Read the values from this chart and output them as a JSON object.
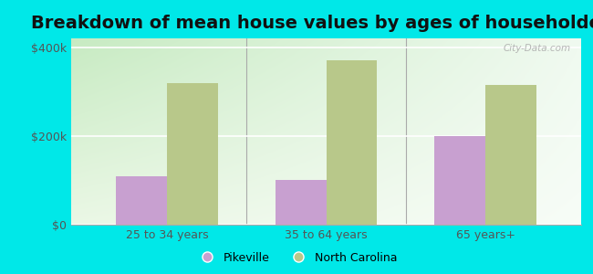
{
  "title": "Breakdown of mean house values by ages of householders",
  "categories": [
    "25 to 34 years",
    "35 to 64 years",
    "65 years+"
  ],
  "pikeville_values": [
    110000,
    100000,
    200000
  ],
  "nc_values": [
    320000,
    370000,
    315000
  ],
  "pikeville_color": "#c8a0d0",
  "nc_color": "#b8c88a",
  "background_color": "#00e8e8",
  "plot_bg_top_left": "#c8e8c0",
  "plot_bg_bottom_right": "#f0faf0",
  "ylabel_ticks": [
    0,
    200000,
    400000
  ],
  "ylabel_labels": [
    "$0",
    "$200k",
    "$400k"
  ],
  "ylim": [
    0,
    420000
  ],
  "title_fontsize": 14,
  "legend_labels": [
    "Pikeville",
    "North Carolina"
  ],
  "bar_width": 0.32,
  "watermark": "City-Data.com"
}
